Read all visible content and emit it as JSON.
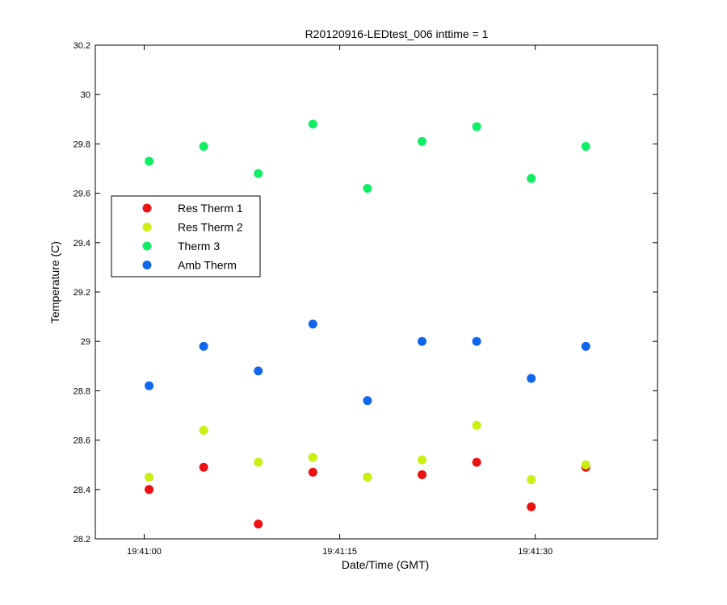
{
  "chart_data": {
    "type": "scatter",
    "title": "R20120916-LEDtest_006 inttime = 1",
    "xlabel": "Date/Time (GMT)",
    "ylabel": "Temperature (C)",
    "xlim": [
      -6,
      63
    ],
    "ylim": [
      28.2,
      30.2
    ],
    "x_ticks": [
      {
        "value": 0,
        "label": "19:41:00"
      },
      {
        "value": 24,
        "label": "19:41:15"
      },
      {
        "value": 48,
        "label": "19:41:30"
      }
    ],
    "y_ticks": [
      "28.2",
      "28.4",
      "28.6",
      "28.8",
      "29",
      "29.2",
      "29.4",
      "29.6",
      "29.8",
      "30",
      "30.2"
    ],
    "grid": false,
    "legend_position": "upper-left",
    "x": [
      0.6,
      7.3,
      14.0,
      20.7,
      27.4,
      34.1,
      40.8,
      47.5,
      54.2
    ],
    "series": [
      {
        "name": "Res Therm 1",
        "color": "#ee1111",
        "values": [
          28.4,
          28.49,
          28.26,
          28.47,
          28.45,
          28.46,
          28.51,
          28.33,
          28.49
        ]
      },
      {
        "name": "Res Therm 2",
        "color": "#ccee11",
        "values": [
          28.45,
          28.64,
          28.51,
          28.53,
          28.45,
          28.52,
          28.66,
          28.44,
          28.5
        ]
      },
      {
        "name": "Therm 3",
        "color": "#11ee66",
        "values": [
          29.73,
          29.79,
          29.68,
          29.88,
          29.62,
          29.81,
          29.87,
          29.66,
          29.79
        ]
      },
      {
        "name": "Amb Therm",
        "color": "#1166ee",
        "values": [
          28.82,
          28.98,
          28.88,
          29.07,
          28.76,
          29.0,
          29.0,
          28.85,
          28.98
        ]
      }
    ]
  }
}
